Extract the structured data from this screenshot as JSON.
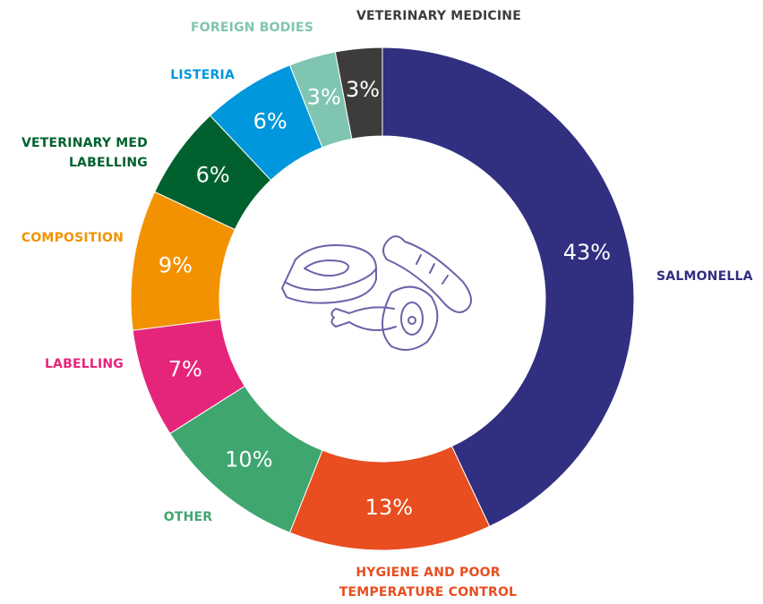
{
  "chart_data": {
    "type": "donut",
    "categories": [
      "SALMONELLA",
      "HYGIENE AND POOR TEMPERATURE CONTROL",
      "OTHER",
      "LABELLING",
      "COMPOSITION",
      "VETERINARY MED LABELLING",
      "LISTERIA",
      "FOREIGN BODIES",
      "VETERINARY MEDICINE"
    ],
    "values": [
      43,
      13,
      10,
      7,
      9,
      6,
      6,
      3,
      3
    ],
    "value_labels": [
      "43%",
      "13%",
      "10%",
      "7%",
      "9%",
      "6%",
      "6%",
      "3%",
      "3%"
    ],
    "colors": [
      "#312f80",
      "#e84e1f",
      "#3fa66f",
      "#e5257a",
      "#f39200",
      "#00612f",
      "#0097dc",
      "#7fc5b1",
      "#3d3c3a"
    ]
  }
}
